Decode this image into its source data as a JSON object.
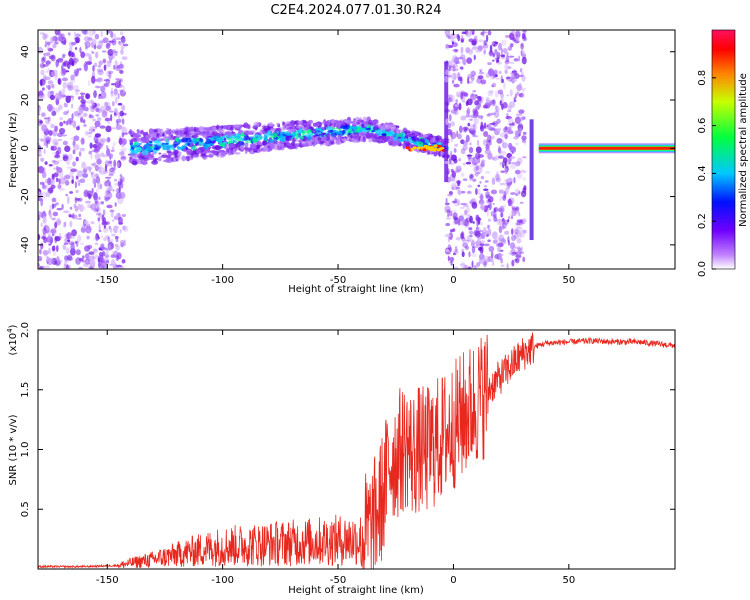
{
  "title": "C2E4.2024.077.01.30.R24",
  "chart_data": [
    {
      "type": "heatmap",
      "xlabel": "Height of straight line (km)",
      "ylabel": "Frequency (Hz)",
      "xlim": [
        -180,
        96
      ],
      "ylim": [
        -50,
        49
      ],
      "x_ticks": [
        -150,
        -100,
        -50,
        0,
        50
      ],
      "y_ticks": [
        -40,
        -20,
        0,
        20,
        40
      ],
      "colorbar": {
        "label": "Normalized spectral amplitude",
        "range": [
          0.0,
          1.0
        ],
        "ticks": [
          0.0,
          0.2,
          0.4,
          0.6,
          0.8
        ],
        "colormap": [
          "#ffffff",
          "#a020f0",
          "#3020ff",
          "#00c0ff",
          "#00ff60",
          "#c0ff00",
          "#ff8000",
          "#ff0000",
          "#ff0080"
        ]
      },
      "regions": [
        {
          "x": [
            -180,
            -142
          ],
          "kind": "noise"
        },
        {
          "x": [
            -140,
            -3
          ],
          "kind": "signal",
          "freq_start": 0,
          "freq_mid": 8,
          "freq_end": 0
        },
        {
          "x": [
            -3,
            31
          ],
          "kind": "noise"
        },
        {
          "x": [
            37,
            96
          ],
          "kind": "tone",
          "freq": 0
        }
      ],
      "grid": false
    },
    {
      "type": "line",
      "xlabel": "Height of straight line (km)",
      "ylabel": "SNR (10 * v/v)",
      "y_multiplier": "x10^4",
      "xlim": [
        -180,
        96
      ],
      "ylim": [
        0,
        20000
      ],
      "x_ticks": [
        -150,
        -100,
        -50,
        0,
        50
      ],
      "y_ticks": [
        5000,
        10000,
        15000,
        20000
      ],
      "y_tick_labels": [
        "0.5",
        "1.0",
        "1.5",
        "2.0"
      ],
      "color": "#e8281e",
      "x": [
        -180,
        -160,
        -145,
        -140,
        -130,
        -120,
        -110,
        -100,
        -90,
        -80,
        -70,
        -60,
        -50,
        -40,
        -35,
        -30,
        -28,
        -25,
        -22,
        -20,
        -18,
        -15,
        -12,
        -10,
        -5,
        0,
        5,
        10,
        15,
        20,
        25,
        30,
        35,
        40,
        50,
        60,
        70,
        80,
        90,
        96
      ],
      "series": [
        {
          "values": [
            200,
            200,
            300,
            500,
            800,
            1200,
            1600,
            1900,
            2000,
            2100,
            2200,
            2300,
            2400,
            2500,
            3500,
            6500,
            9000,
            9500,
            10000,
            10500,
            9500,
            10000,
            9800,
            10200,
            11000,
            12000,
            13000,
            14000,
            15000,
            16000,
            17000,
            18000,
            18600,
            18900,
            19000,
            19100,
            19000,
            19000,
            18800,
            18700
          ]
        }
      ],
      "grid": false
    }
  ]
}
